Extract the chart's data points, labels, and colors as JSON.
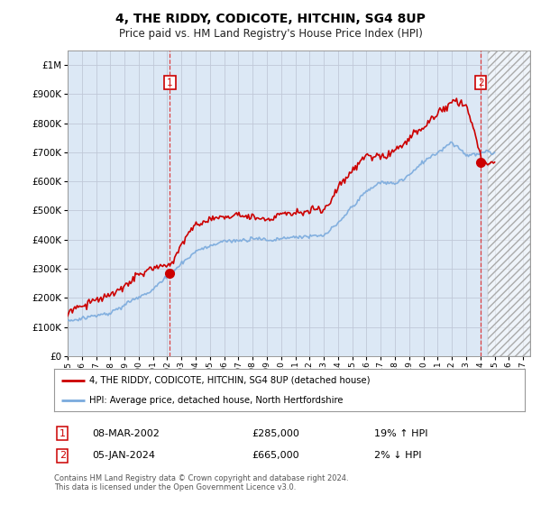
{
  "title": "4, THE RIDDY, CODICOTE, HITCHIN, SG4 8UP",
  "subtitle": "Price paid vs. HM Land Registry's House Price Index (HPI)",
  "ylim": [
    0,
    1050000
  ],
  "yticks": [
    0,
    100000,
    200000,
    300000,
    400000,
    500000,
    600000,
    700000,
    800000,
    900000,
    1000000
  ],
  "sale1": {
    "date_num": 2002.18,
    "price": 285000
  },
  "sale2": {
    "date_num": 2024.02,
    "price": 665000
  },
  "legend1_label": "4, THE RIDDY, CODICOTE, HITCHIN, SG4 8UP (detached house)",
  "legend2_label": "HPI: Average price, detached house, North Hertfordshire",
  "table_row1": [
    "1",
    "08-MAR-2002",
    "£285,000",
    "19% ↑ HPI"
  ],
  "table_row2": [
    "2",
    "05-JAN-2024",
    "£665,000",
    "2% ↓ HPI"
  ],
  "footer1": "Contains HM Land Registry data © Crown copyright and database right 2024.",
  "footer2": "This data is licensed under the Open Government Licence v3.0.",
  "line_color_red": "#cc0000",
  "line_color_blue": "#7aaadd",
  "vline_color": "#dd2222",
  "bg_color": "#ffffff",
  "chart_bg": "#dce8f5",
  "grid_color": "#c0c8d8",
  "xlim_left": 1995.0,
  "xlim_right": 2027.5,
  "future_x": 2024.5,
  "xtick_years": [
    1995,
    1996,
    1997,
    1998,
    1999,
    2000,
    2001,
    2002,
    2003,
    2004,
    2005,
    2006,
    2007,
    2008,
    2009,
    2010,
    2011,
    2012,
    2013,
    2014,
    2015,
    2016,
    2017,
    2018,
    2019,
    2020,
    2021,
    2022,
    2023,
    2024,
    2025,
    2026,
    2027
  ]
}
